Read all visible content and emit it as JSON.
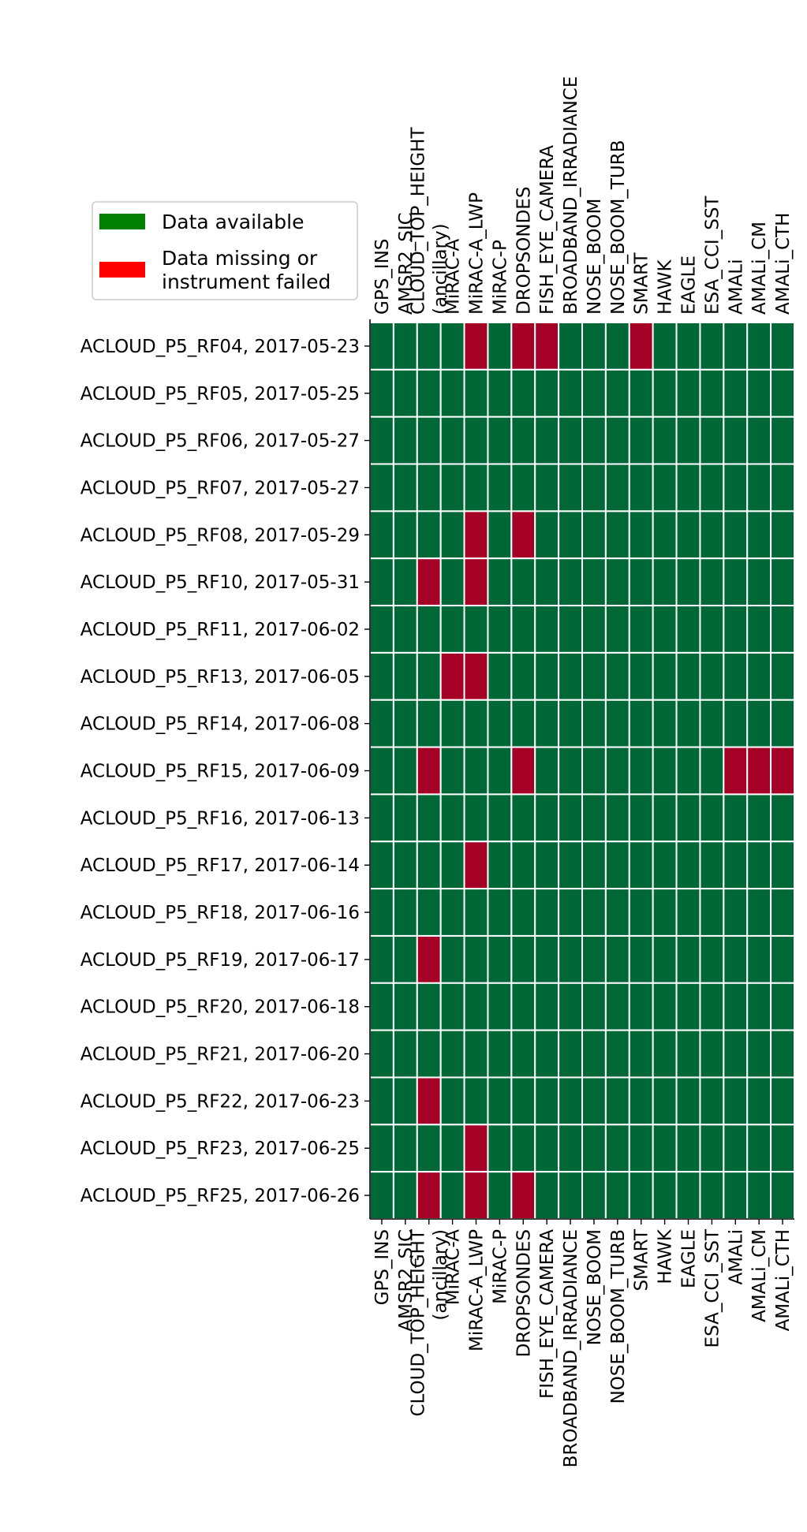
{
  "chart_data": {
    "type": "heatmap",
    "title": "",
    "xlabel": "",
    "ylabel": "",
    "columns": [
      "GPS_INS",
      "AMSR2_SIC",
      "CLOUD_TOP_HEIGHT\n(ancillary)",
      "MiRAC-A",
      "MiRAC-A_LWP",
      "MiRAC-P",
      "DROPSONDES",
      "FISH_EYE_CAMERA",
      "BROADBAND_IRRADIANCE",
      "NOSE_BOOM",
      "NOSE_BOOM_TURB",
      "SMART",
      "HAWK",
      "EAGLE",
      "ESA_CCI_SST",
      "AMALi",
      "AMALi_CM",
      "AMALi_CTH"
    ],
    "rows": [
      "ACLOUD_P5_RF04, 2017-05-23",
      "ACLOUD_P5_RF05, 2017-05-25",
      "ACLOUD_P5_RF06, 2017-05-27",
      "ACLOUD_P5_RF07, 2017-05-27",
      "ACLOUD_P5_RF08, 2017-05-29",
      "ACLOUD_P5_RF10, 2017-05-31",
      "ACLOUD_P5_RF11, 2017-06-02",
      "ACLOUD_P5_RF13, 2017-06-05",
      "ACLOUD_P5_RF14, 2017-06-08",
      "ACLOUD_P5_RF15, 2017-06-09",
      "ACLOUD_P5_RF16, 2017-06-13",
      "ACLOUD_P5_RF17, 2017-06-14",
      "ACLOUD_P5_RF18, 2017-06-16",
      "ACLOUD_P5_RF19, 2017-06-17",
      "ACLOUD_P5_RF20, 2017-06-18",
      "ACLOUD_P5_RF21, 2017-06-20",
      "ACLOUD_P5_RF22, 2017-06-23",
      "ACLOUD_P5_RF23, 2017-06-25",
      "ACLOUD_P5_RF25, 2017-06-26"
    ],
    "values": [
      [
        1,
        1,
        1,
        1,
        0,
        1,
        0,
        0,
        1,
        1,
        1,
        0,
        1,
        1,
        1,
        1,
        1,
        1
      ],
      [
        1,
        1,
        1,
        1,
        1,
        1,
        1,
        1,
        1,
        1,
        1,
        1,
        1,
        1,
        1,
        1,
        1,
        1
      ],
      [
        1,
        1,
        1,
        1,
        1,
        1,
        1,
        1,
        1,
        1,
        1,
        1,
        1,
        1,
        1,
        1,
        1,
        1
      ],
      [
        1,
        1,
        1,
        1,
        1,
        1,
        1,
        1,
        1,
        1,
        1,
        1,
        1,
        1,
        1,
        1,
        1,
        1
      ],
      [
        1,
        1,
        1,
        1,
        0,
        1,
        0,
        1,
        1,
        1,
        1,
        1,
        1,
        1,
        1,
        1,
        1,
        1
      ],
      [
        1,
        1,
        0,
        1,
        0,
        1,
        1,
        1,
        1,
        1,
        1,
        1,
        1,
        1,
        1,
        1,
        1,
        1
      ],
      [
        1,
        1,
        1,
        1,
        1,
        1,
        1,
        1,
        1,
        1,
        1,
        1,
        1,
        1,
        1,
        1,
        1,
        1
      ],
      [
        1,
        1,
        1,
        0,
        0,
        1,
        1,
        1,
        1,
        1,
        1,
        1,
        1,
        1,
        1,
        1,
        1,
        1
      ],
      [
        1,
        1,
        1,
        1,
        1,
        1,
        1,
        1,
        1,
        1,
        1,
        1,
        1,
        1,
        1,
        1,
        1,
        1
      ],
      [
        1,
        1,
        0,
        1,
        1,
        1,
        0,
        1,
        1,
        1,
        1,
        1,
        1,
        1,
        1,
        0,
        0,
        0
      ],
      [
        1,
        1,
        1,
        1,
        1,
        1,
        1,
        1,
        1,
        1,
        1,
        1,
        1,
        1,
        1,
        1,
        1,
        1
      ],
      [
        1,
        1,
        1,
        1,
        0,
        1,
        1,
        1,
        1,
        1,
        1,
        1,
        1,
        1,
        1,
        1,
        1,
        1
      ],
      [
        1,
        1,
        1,
        1,
        1,
        1,
        1,
        1,
        1,
        1,
        1,
        1,
        1,
        1,
        1,
        1,
        1,
        1
      ],
      [
        1,
        1,
        0,
        1,
        1,
        1,
        1,
        1,
        1,
        1,
        1,
        1,
        1,
        1,
        1,
        1,
        1,
        1
      ],
      [
        1,
        1,
        1,
        1,
        1,
        1,
        1,
        1,
        1,
        1,
        1,
        1,
        1,
        1,
        1,
        1,
        1,
        1
      ],
      [
        1,
        1,
        1,
        1,
        1,
        1,
        1,
        1,
        1,
        1,
        1,
        1,
        1,
        1,
        1,
        1,
        1,
        1
      ],
      [
        1,
        1,
        0,
        1,
        1,
        1,
        1,
        1,
        1,
        1,
        1,
        1,
        1,
        1,
        1,
        1,
        1,
        1
      ],
      [
        1,
        1,
        1,
        1,
        0,
        1,
        1,
        1,
        1,
        1,
        1,
        1,
        1,
        1,
        1,
        1,
        1,
        1
      ],
      [
        1,
        1,
        0,
        1,
        0,
        1,
        0,
        1,
        1,
        1,
        1,
        1,
        1,
        1,
        1,
        1,
        1,
        1
      ]
    ],
    "colors": {
      "available": "#006837",
      "missing": "#a50026",
      "legend_available": "#008000",
      "legend_missing": "#ff0000"
    },
    "legend": {
      "placement": "top-left",
      "entries": [
        {
          "label": "Data available",
          "color_key": "legend_available"
        },
        {
          "label": "Data missing or\ninstrument failed",
          "color_key": "legend_missing"
        }
      ]
    },
    "grid": true
  }
}
